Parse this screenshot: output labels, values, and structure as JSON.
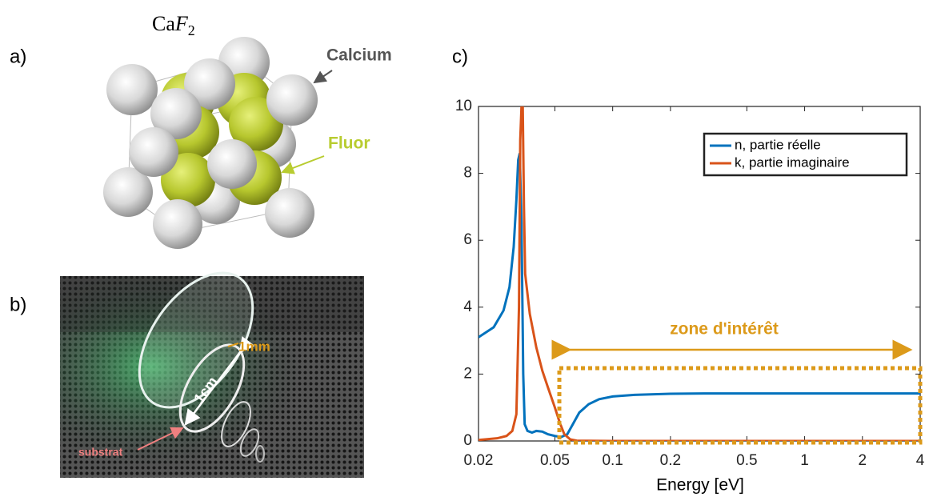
{
  "panels": {
    "a": {
      "letter": "a)",
      "formula": {
        "base": "Ca",
        "italic": "F",
        "sub": "2"
      },
      "calcium": "Calcium",
      "fluor": "Fluor"
    },
    "b": {
      "letter": "b)",
      "thickness": "1mm",
      "diameter": "1cm",
      "substrate": "substrat"
    },
    "c": {
      "letter": "c)"
    }
  },
  "chart_data": {
    "type": "line",
    "xlabel": "Energy [eV]",
    "xscale": "log",
    "legend": "upper right",
    "annotation": "zone d'intérêt",
    "xlim": [
      0.02,
      4
    ],
    "xticks": [
      0.02,
      0.05,
      0.1,
      0.2,
      0.5,
      1,
      2,
      4
    ],
    "ylim": [
      0,
      10
    ],
    "yticks": [
      0,
      2,
      4,
      6,
      8,
      10
    ],
    "series": [
      {
        "name": "n, partie réelle",
        "color": "#0072bd",
        "x": [
          0.02,
          0.024,
          0.027,
          0.029,
          0.0305,
          0.0315,
          0.0322,
          0.0328,
          0.0335,
          0.0342,
          0.0348,
          0.036,
          0.038,
          0.04,
          0.043,
          0.046,
          0.05,
          0.054,
          0.058,
          0.062,
          0.067,
          0.075,
          0.085,
          0.1,
          0.13,
          0.2,
          0.3,
          0.5,
          1,
          2,
          4
        ],
        "values": [
          3.1,
          3.4,
          3.9,
          4.6,
          5.8,
          7.2,
          8.4,
          8.6,
          6.5,
          2.0,
          0.5,
          0.3,
          0.25,
          0.3,
          0.28,
          0.2,
          0.15,
          0.12,
          0.2,
          0.5,
          0.85,
          1.1,
          1.25,
          1.33,
          1.38,
          1.41,
          1.42,
          1.42,
          1.42,
          1.42,
          1.42
        ]
      },
      {
        "name": "k, partie imaginaire",
        "color": "#d95319",
        "x": [
          0.02,
          0.025,
          0.028,
          0.03,
          0.0315,
          0.0325,
          0.033,
          0.0335,
          0.034,
          0.0345,
          0.035,
          0.037,
          0.04,
          0.043,
          0.046,
          0.05,
          0.053,
          0.056,
          0.06,
          0.065,
          0.1,
          1,
          4
        ],
        "values": [
          0.03,
          0.08,
          0.15,
          0.3,
          0.8,
          4,
          9,
          10,
          10,
          7,
          5,
          3.8,
          2.8,
          2.1,
          1.6,
          1.0,
          0.55,
          0.2,
          0.05,
          0.01,
          0,
          0,
          0
        ]
      }
    ]
  }
}
